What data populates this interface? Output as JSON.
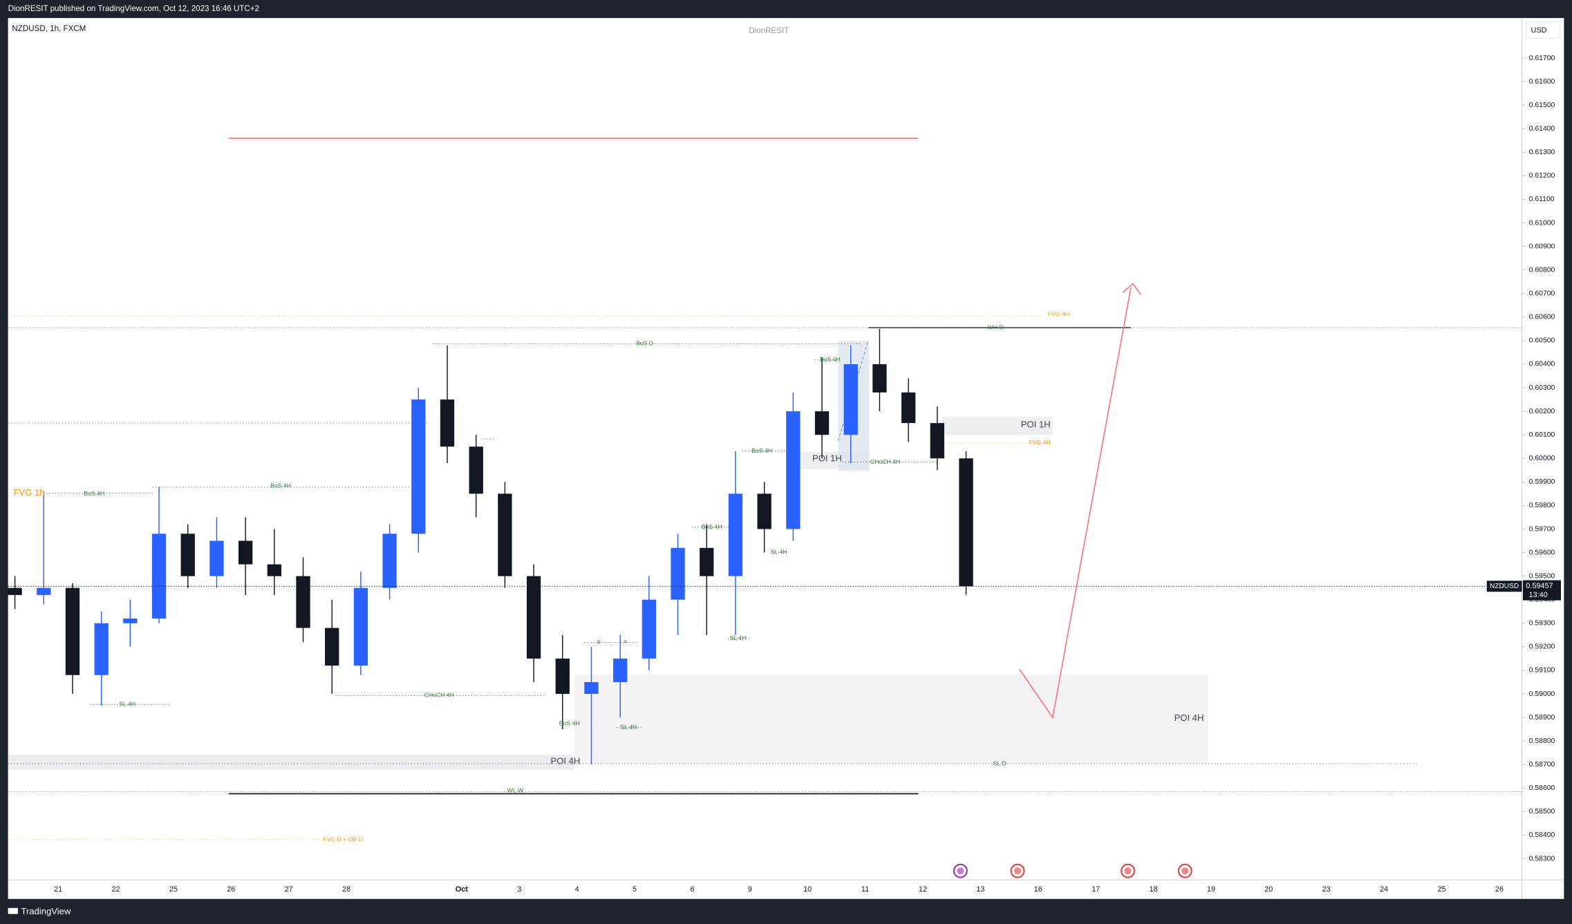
{
  "header": {
    "published": "DionRESIT published on TradingView.com, Oct 12, 2023 16:46 UTC+2",
    "symbol": "NZDUSD, 1h, FXCM",
    "watermark": "DionRESIT",
    "currency": "USD",
    "ticker_tag": "NZDUSD",
    "countdown": "13:40",
    "footer": "TradingView"
  },
  "chart_data": {
    "type": "candlestick",
    "categories": [
      null,
      null,
      "21",
      null,
      "22",
      null,
      "25",
      null,
      "26",
      null,
      "27",
      null,
      "28",
      null,
      null,
      null,
      "Oct",
      null,
      "3",
      null,
      "4",
      null,
      "5",
      null,
      "6",
      null,
      "9",
      null,
      "10",
      null,
      "11",
      null,
      "12",
      null,
      "13",
      null,
      "16",
      null,
      "17",
      null,
      "18",
      null,
      "19",
      null,
      "20",
      null,
      "23",
      null,
      "24",
      null,
      "25",
      null,
      "26"
    ],
    "open": [
      0.5945,
      0.5942,
      0.5945,
      0.5908,
      0.593,
      0.5932,
      0.5968,
      0.595,
      0.5965,
      0.5955,
      0.595,
      0.5928,
      0.5912,
      0.5945,
      0.5968,
      0.6025,
      0.6005,
      0.5985,
      0.595,
      0.5915,
      0.59,
      0.5905,
      0.5915,
      0.594,
      0.5962,
      0.595,
      0.5985,
      0.597,
      0.602,
      0.601,
      0.604,
      0.6028,
      0.6015,
      0.6,
      null,
      null,
      null,
      null,
      null,
      null,
      null,
      null,
      null,
      null,
      null,
      null,
      null,
      null,
      null,
      null,
      null,
      null,
      null
    ],
    "high": [
      0.595,
      0.5986,
      0.5947,
      0.5935,
      0.594,
      0.5988,
      0.5972,
      0.5975,
      0.5975,
      0.597,
      0.5958,
      0.594,
      0.5952,
      0.5972,
      0.603,
      0.6048,
      0.601,
      0.599,
      0.5955,
      0.5925,
      0.592,
      0.5925,
      0.595,
      0.5968,
      0.5972,
      0.6003,
      0.599,
      0.6028,
      0.6043,
      0.6048,
      0.6055,
      0.6034,
      0.6022,
      0.6003,
      null,
      null,
      null,
      null,
      null,
      null,
      null,
      null,
      null,
      null,
      null,
      null,
      null,
      null,
      null,
      null,
      null,
      null,
      null
    ],
    "low": [
      0.5936,
      0.5938,
      0.59,
      0.5895,
      0.592,
      0.593,
      0.5945,
      0.5945,
      0.5942,
      0.5942,
      0.5922,
      0.59,
      0.5908,
      0.594,
      0.596,
      0.5998,
      0.5975,
      0.5945,
      0.5905,
      0.5885,
      0.587,
      0.589,
      0.591,
      0.5925,
      0.5925,
      0.5925,
      0.596,
      0.5965,
      0.6,
      0.5998,
      0.602,
      0.6007,
      0.5995,
      0.5942,
      null,
      null,
      null,
      null,
      null,
      null,
      null,
      null,
      null,
      null,
      null,
      null,
      null,
      null,
      null,
      null,
      null,
      null,
      null
    ],
    "close": [
      0.5942,
      0.5945,
      0.5908,
      0.593,
      0.5932,
      0.5968,
      0.595,
      0.5965,
      0.5955,
      0.595,
      0.5928,
      0.5912,
      0.5945,
      0.5968,
      0.6025,
      0.6005,
      0.5985,
      0.595,
      0.5915,
      0.59,
      0.5905,
      0.5915,
      0.594,
      0.5962,
      0.595,
      0.5985,
      0.597,
      0.602,
      0.601,
      0.604,
      0.6028,
      0.6015,
      0.6,
      0.59457,
      null,
      null,
      null,
      null,
      null,
      null,
      null,
      null,
      null,
      null,
      null,
      null,
      null,
      null,
      null,
      null,
      null,
      null,
      null
    ],
    "up_color": "#2962ff",
    "down_color": "#131722",
    "last_price": 0.59457,
    "ylim": [
      0.5821,
      0.6187
    ],
    "yticks": [
      {
        "value": 0.583,
        "label": "0.58300"
      },
      {
        "value": 0.584,
        "label": "0.58400"
      },
      {
        "value": 0.585,
        "label": "0.58500"
      },
      {
        "value": 0.586,
        "label": "0.58600"
      },
      {
        "value": 0.587,
        "label": "0.58700"
      },
      {
        "value": 0.588,
        "label": "0.58800"
      },
      {
        "value": 0.589,
        "label": "0.58900"
      },
      {
        "value": 0.59,
        "label": "0.59000"
      },
      {
        "value": 0.591,
        "label": "0.59100"
      },
      {
        "value": 0.592,
        "label": "0.59200"
      },
      {
        "value": 0.593,
        "label": "0.59300"
      },
      {
        "value": 0.594,
        "label": "0.59400"
      },
      {
        "value": 0.595,
        "label": "0.59500"
      },
      {
        "value": 0.596,
        "label": "0.59600"
      },
      {
        "value": 0.597,
        "label": "0.59700"
      },
      {
        "value": 0.598,
        "label": "0.59800"
      },
      {
        "value": 0.599,
        "label": "0.59900"
      },
      {
        "value": 0.6,
        "label": "0.60000"
      },
      {
        "value": 0.601,
        "label": "0.60100"
      },
      {
        "value": 0.602,
        "label": "0.60200"
      },
      {
        "value": 0.603,
        "label": "0.60300"
      },
      {
        "value": 0.604,
        "label": "0.60400"
      },
      {
        "value": 0.605,
        "label": "0.60500"
      },
      {
        "value": 0.606,
        "label": "0.60600"
      },
      {
        "value": 0.607,
        "label": "0.60700"
      },
      {
        "value": 0.608,
        "label": "0.60800"
      },
      {
        "value": 0.609,
        "label": "0.60900"
      },
      {
        "value": 0.61,
        "label": "0.61000"
      },
      {
        "value": 0.611,
        "label": "0.61100"
      },
      {
        "value": 0.612,
        "label": "0.61200"
      },
      {
        "value": 0.613,
        "label": "0.61300"
      },
      {
        "value": 0.614,
        "label": "0.61400"
      },
      {
        "value": 0.615,
        "label": "0.61500"
      },
      {
        "value": 0.616,
        "label": "0.61600"
      },
      {
        "value": 0.617,
        "label": "0.61700"
      }
    ],
    "grid": false,
    "annotations": [
      {
        "text": "FVG 1h",
        "color": "#ff9800"
      },
      {
        "text": "BoS 4H",
        "color": "#2e7d32"
      },
      {
        "text": "BoS 4H",
        "color": "#2e7d32"
      },
      {
        "text": "BoS D",
        "color": "#2e7d32"
      },
      {
        "text": "BoS 4H",
        "color": "#2e7d32"
      },
      {
        "text": "BoS 4H",
        "color": "#2e7d32"
      },
      {
        "text": "BoS 4H",
        "color": "#2e7d32"
      },
      {
        "text": "SL 4H",
        "color": "#2e7d32"
      },
      {
        "text": "SL 4H",
        "color": "#2e7d32"
      },
      {
        "text": "CHoCH 4H",
        "color": "#2e7d32"
      },
      {
        "text": "POI 1H",
        "color": "#434651"
      },
      {
        "text": "FVG 4H",
        "color": "#ff9800"
      },
      {
        "text": "FVG 4H",
        "color": "#ff9800"
      },
      {
        "text": "WH D",
        "color": "#2e7d32"
      },
      {
        "text": "POI 1H",
        "color": "#434651"
      },
      {
        "text": "X",
        "color": "#2e7d32"
      },
      {
        "text": "x",
        "color": "#2e7d32"
      },
      {
        "text": "CHoCH 4H",
        "color": "#2e7d32"
      },
      {
        "text": "SL 4H",
        "color": "#2e7d32"
      },
      {
        "text": "BoS 4H",
        "color": "#2e7d32"
      },
      {
        "text": "SL 4H",
        "color": "#2e7d32"
      },
      {
        "text": "POI 4H",
        "color": "#434651"
      },
      {
        "text": "POI 4H",
        "color": "#434651"
      },
      {
        "text": "SL D",
        "color": "#2e7d32"
      },
      {
        "text": "WL W",
        "color": "#2e7d32"
      },
      {
        "text": "FVG D + OB D",
        "color": "#ff9800"
      }
    ]
  }
}
